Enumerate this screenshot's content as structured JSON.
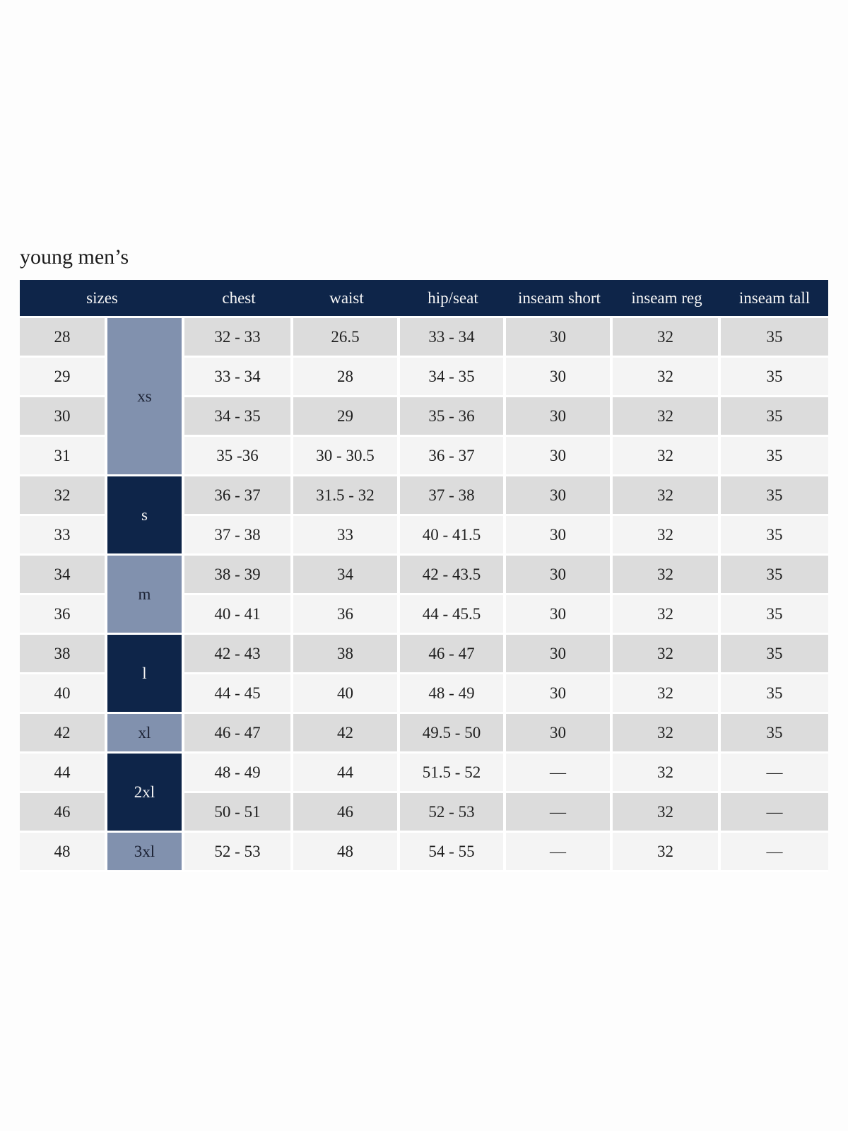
{
  "page": {
    "title": "young men’s"
  },
  "table": {
    "headers": [
      "sizes",
      "chest",
      "waist",
      "hip/seat",
      "inseam short",
      "inseam reg",
      "inseam tall"
    ],
    "groups": [
      {
        "label": "xs",
        "span": 4,
        "variant": "slate"
      },
      {
        "label": "s",
        "span": 2,
        "variant": "navy"
      },
      {
        "label": "m",
        "span": 2,
        "variant": "slate"
      },
      {
        "label": "l",
        "span": 2,
        "variant": "navy"
      },
      {
        "label": "xl",
        "span": 1,
        "variant": "slate"
      },
      {
        "label": "2xl",
        "span": 2,
        "variant": "navy"
      },
      {
        "label": "3xl",
        "span": 1,
        "variant": "slate"
      }
    ],
    "rows": [
      {
        "size": "28",
        "chest": "32 - 33",
        "waist": "26.5",
        "hip_seat": "33 - 34",
        "inseam_short": "30",
        "inseam_reg": "32",
        "inseam_tall": "35"
      },
      {
        "size": "29",
        "chest": "33 - 34",
        "waist": "28",
        "hip_seat": "34 - 35",
        "inseam_short": "30",
        "inseam_reg": "32",
        "inseam_tall": "35"
      },
      {
        "size": "30",
        "chest": "34 - 35",
        "waist": "29",
        "hip_seat": "35 - 36",
        "inseam_short": "30",
        "inseam_reg": "32",
        "inseam_tall": "35"
      },
      {
        "size": "31",
        "chest": "35 -36",
        "waist": "30 - 30.5",
        "hip_seat": "36 - 37",
        "inseam_short": "30",
        "inseam_reg": "32",
        "inseam_tall": "35"
      },
      {
        "size": "32",
        "chest": "36 - 37",
        "waist": "31.5 - 32",
        "hip_seat": "37 - 38",
        "inseam_short": "30",
        "inseam_reg": "32",
        "inseam_tall": "35"
      },
      {
        "size": "33",
        "chest": "37 - 38",
        "waist": "33",
        "hip_seat": "40 - 41.5",
        "inseam_short": "30",
        "inseam_reg": "32",
        "inseam_tall": "35"
      },
      {
        "size": "34",
        "chest": "38 - 39",
        "waist": "34",
        "hip_seat": "42 - 43.5",
        "inseam_short": "30",
        "inseam_reg": "32",
        "inseam_tall": "35"
      },
      {
        "size": "36",
        "chest": "40 - 41",
        "waist": "36",
        "hip_seat": "44 - 45.5",
        "inseam_short": "30",
        "inseam_reg": "32",
        "inseam_tall": "35"
      },
      {
        "size": "38",
        "chest": "42 - 43",
        "waist": "38",
        "hip_seat": "46 - 47",
        "inseam_short": "30",
        "inseam_reg": "32",
        "inseam_tall": "35"
      },
      {
        "size": "40",
        "chest": "44 - 45",
        "waist": "40",
        "hip_seat": "48 - 49",
        "inseam_short": "30",
        "inseam_reg": "32",
        "inseam_tall": "35"
      },
      {
        "size": "42",
        "chest": "46 - 47",
        "waist": "42",
        "hip_seat": "49.5 - 50",
        "inseam_short": "30",
        "inseam_reg": "32",
        "inseam_tall": "35"
      },
      {
        "size": "44",
        "chest": "48 - 49",
        "waist": "44",
        "hip_seat": "51.5 - 52",
        "inseam_short": "—",
        "inseam_reg": "32",
        "inseam_tall": "—"
      },
      {
        "size": "46",
        "chest": "50 - 51",
        "waist": "46",
        "hip_seat": "52 - 53",
        "inseam_short": "—",
        "inseam_reg": "32",
        "inseam_tall": "—"
      },
      {
        "size": "48",
        "chest": "52 - 53",
        "waist": "48",
        "hip_seat": "54 - 55",
        "inseam_short": "—",
        "inseam_reg": "32",
        "inseam_tall": "—"
      }
    ]
  },
  "colors": {
    "header_bg": "#0e2549",
    "group_navy": "#0e2549",
    "group_slate": "#8191ae",
    "row_odd": "#dcdcdc",
    "row_even": "#f4f4f4",
    "text_dark": "#1e1e1e",
    "text_light": "#f5f5f5",
    "group_text_dark": "#1b2133",
    "page_bg": "#fdfdfd"
  }
}
